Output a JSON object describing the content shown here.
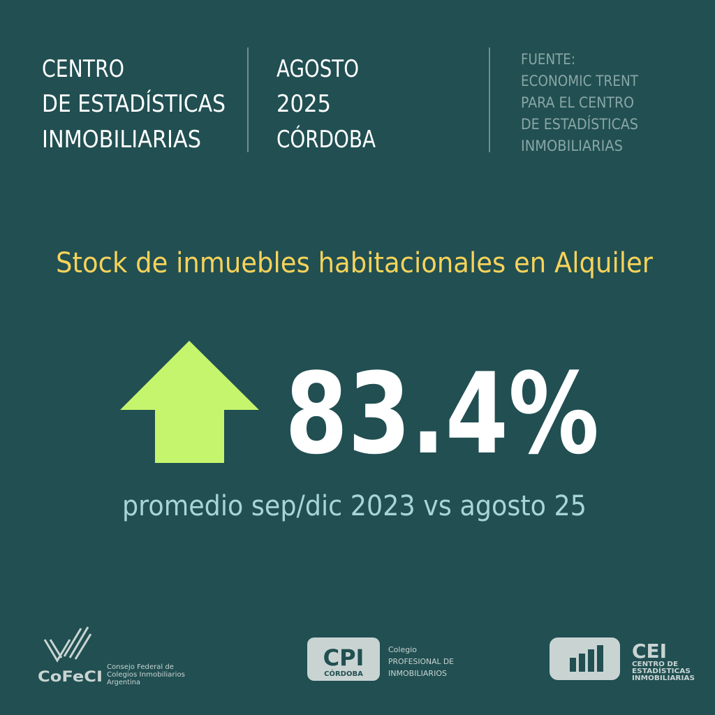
{
  "header": {
    "organization": [
      "CENTRO",
      "DE ESTADÍSTICAS",
      "INMOBILIARIAS"
    ],
    "period": [
      "AGOSTO",
      "2025",
      "CÓRDOBA"
    ],
    "source": [
      "FUENTE:",
      "ECONOMIC TRENT",
      "PARA EL CENTRO",
      "DE ESTADÍSTICAS",
      "INMOBILIARIAS"
    ]
  },
  "headline": {
    "title": "Stock de inmuebles habitacionales en Alquiler",
    "value": "83.4%",
    "subtitle": "promedio sep/dic 2023 vs agosto 25"
  },
  "logos": {
    "cofeci": {
      "name": "CoFeCI",
      "lines": [
        "Consejo Federal de",
        "Colegios Inmobiliarios",
        "Argentina"
      ]
    },
    "cpi": {
      "name": "CPI",
      "place": "CÓRDOBA",
      "lines": [
        "Colegio",
        "PROFESIONAL DE",
        "INMOBILIARIOS"
      ]
    },
    "cei": {
      "name": "CEI",
      "lines": [
        "CENTRO DE",
        "ESTADÍSTICAS",
        "INMOBILIARIAS"
      ]
    }
  }
}
